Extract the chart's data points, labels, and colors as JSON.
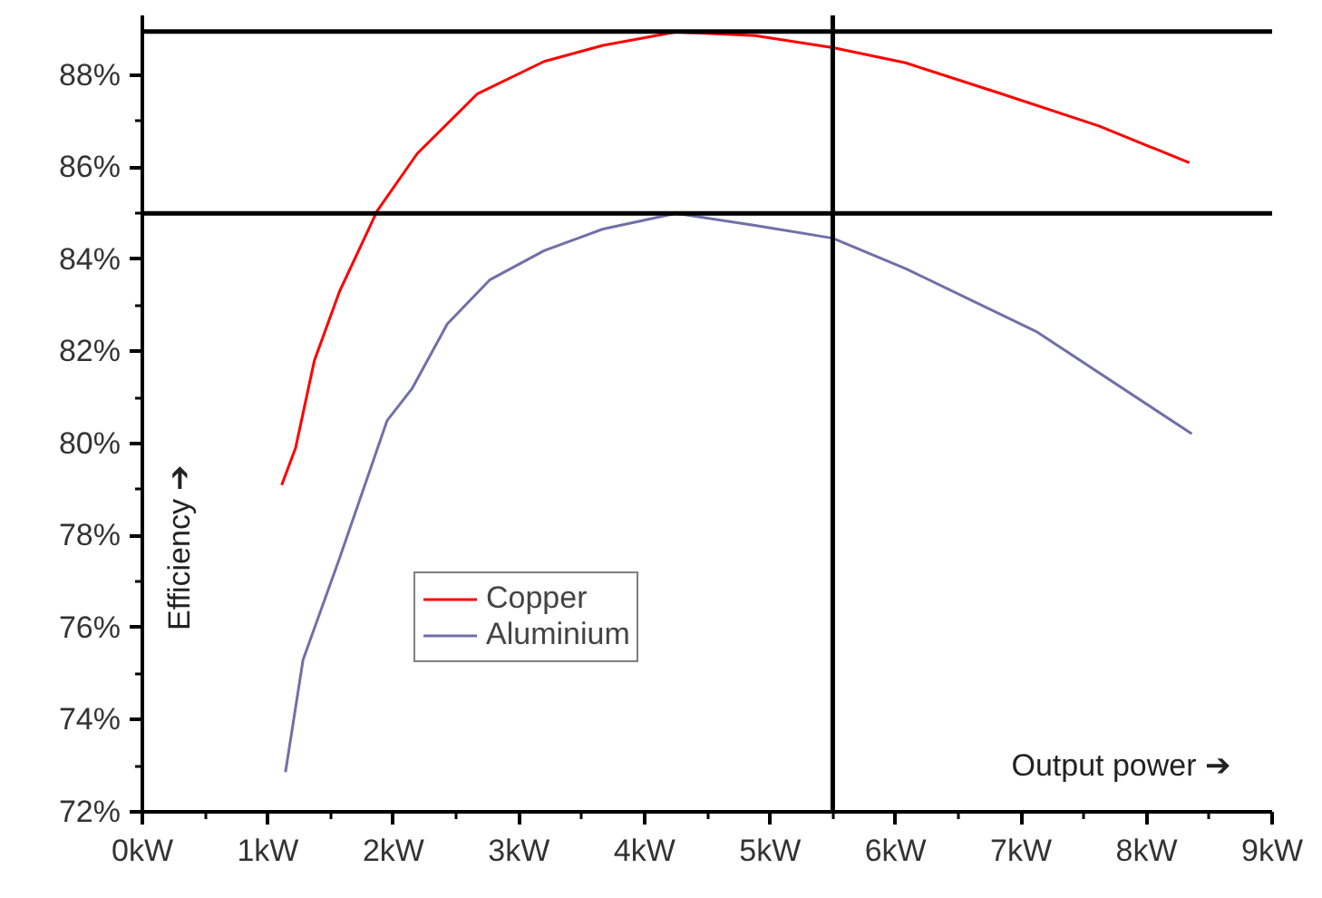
{
  "chart_data": {
    "type": "line",
    "xlabel": "Output power ➔",
    "ylabel": "Efficiency ➔",
    "xlim": [
      0,
      9
    ],
    "ylim": [
      72,
      89.3
    ],
    "xticks": [
      {
        "value": 0,
        "label": "0kW"
      },
      {
        "value": 1,
        "label": "1kW"
      },
      {
        "value": 2,
        "label": "2kW"
      },
      {
        "value": 3,
        "label": "3kW"
      },
      {
        "value": 4,
        "label": "4kW"
      },
      {
        "value": 5,
        "label": "5kW"
      },
      {
        "value": 6,
        "label": "6kW"
      },
      {
        "value": 7,
        "label": "7kW"
      },
      {
        "value": 8,
        "label": "8kW"
      },
      {
        "value": 9,
        "label": "9kW"
      }
    ],
    "yticks": [
      {
        "value": 72,
        "label": "72%"
      },
      {
        "value": 74,
        "label": "74%"
      },
      {
        "value": 76,
        "label": "76%"
      },
      {
        "value": 78,
        "label": "78%"
      },
      {
        "value": 80,
        "label": "80%"
      },
      {
        "value": 82,
        "label": "82%"
      },
      {
        "value": 84,
        "label": "84%"
      },
      {
        "value": 86,
        "label": "86%"
      },
      {
        "value": 88,
        "label": "88%"
      }
    ],
    "series": [
      {
        "name": "Copper",
        "color": "#ff0000",
        "x": [
          1.11,
          1.22,
          1.37,
          1.57,
          1.87,
          2.19,
          2.67,
          3.2,
          3.67,
          4.25,
          4.88,
          5.5,
          6.08,
          6.84,
          7.62,
          8.34
        ],
        "values": [
          79.1,
          79.9,
          81.8,
          83.3,
          85.05,
          86.3,
          87.6,
          88.3,
          88.65,
          88.94,
          88.86,
          88.6,
          88.27,
          87.6,
          86.9,
          86.1
        ]
      },
      {
        "name": "Aluminium",
        "color": "#7070a8",
        "x": [
          1.14,
          1.28,
          1.57,
          1.95,
          2.15,
          2.43,
          2.77,
          3.2,
          3.67,
          4.25,
          4.88,
          5.5,
          6.08,
          7.13,
          8.36
        ],
        "values": [
          72.86,
          75.3,
          77.5,
          80.5,
          81.2,
          82.6,
          83.56,
          84.19,
          84.66,
          85.0,
          84.74,
          84.46,
          83.8,
          82.42,
          80.21
        ]
      }
    ],
    "ref_lines": [
      {
        "axis": "y",
        "value": 88.95,
        "label": null,
        "color": "#000000"
      },
      {
        "axis": "y",
        "value": 85.0,
        "label": null,
        "color": "#000000"
      },
      {
        "axis": "x",
        "value": 5.5,
        "label": null,
        "color": "#000000"
      }
    ],
    "legend": "bottom left",
    "grid": false,
    "marker": "none",
    "line_style": "solid"
  }
}
